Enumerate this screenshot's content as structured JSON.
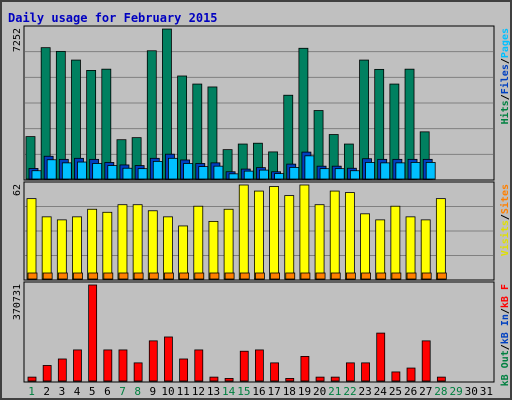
{
  "chart_data": {
    "type": "bar",
    "title": "Daily usage for February 2015",
    "categories": [
      "1",
      "2",
      "3",
      "4",
      "5",
      "6",
      "7",
      "8",
      "9",
      "10",
      "11",
      "12",
      "13",
      "14",
      "15",
      "16",
      "17",
      "18",
      "19",
      "20",
      "21",
      "22",
      "23",
      "24",
      "25",
      "26",
      "27",
      "28",
      "29",
      "30",
      "31"
    ],
    "weekend_days": [
      "1",
      "7",
      "8",
      "14",
      "15",
      "21",
      "22",
      "28",
      "29"
    ],
    "panels": [
      {
        "id": "top",
        "max_label": "7252",
        "ylim": [
          0,
          7252
        ],
        "right_label": [
          {
            "text": "Hits",
            "color": "#008040"
          },
          {
            "text": "/",
            "color": "#000000"
          },
          {
            "text": "Files",
            "color": "#0040c0"
          },
          {
            "text": "/",
            "color": "#000000"
          },
          {
            "text": "Pages",
            "color": "#00c0ff"
          }
        ],
        "series": [
          {
            "name": "Hits",
            "color": "#008060",
            "values": [
              2050,
              6350,
              6170,
              5750,
              5250,
              5310,
              1900,
              2000,
              6200,
              7250,
              4980,
              4590,
              4450,
              1420,
              1690,
              1730,
              1310,
              4050,
              6320,
              3310,
              2150,
              1690,
              5750,
              5300,
              4590,
              5310,
              2280,
              0,
              0,
              0,
              0
            ]
          },
          {
            "name": "Files",
            "color": "#0040c0",
            "values": [
              510,
              1100,
              950,
              1000,
              950,
              800,
              680,
              650,
              1000,
              1200,
              920,
              750,
              780,
              350,
              480,
              550,
              350,
              720,
              1300,
              620,
              620,
              520,
              980,
              950,
              950,
              950,
              950,
              0,
              0,
              0,
              0
            ]
          },
          {
            "name": "Pages",
            "color": "#00c0ff",
            "values": [
              400,
              930,
              780,
              820,
              750,
              650,
              520,
              500,
              850,
              1000,
              750,
              600,
              620,
              250,
              380,
              430,
              260,
              560,
              1120,
              500,
              500,
              400,
              800,
              780,
              780,
              800,
              800,
              0,
              0,
              0,
              0
            ]
          }
        ]
      },
      {
        "id": "middle",
        "max_label": "62",
        "ylim": [
          0,
          62
        ],
        "right_label": [
          {
            "text": "Visits",
            "color": "#e0e000"
          },
          {
            "text": "/",
            "color": "#000000"
          },
          {
            "text": "Sites",
            "color": "#ff8000"
          }
        ],
        "series": [
          {
            "name": "Visits",
            "color": "#ffff00",
            "values": [
              53,
              41,
              39,
              41,
              46,
              44,
              49,
              49,
              45,
              41,
              35,
              48,
              38,
              46,
              62,
              58,
              61,
              55,
              62,
              49,
              58,
              57,
              43,
              39,
              48,
              41,
              39,
              53,
              0,
              0,
              0
            ]
          },
          {
            "name": "Sites",
            "color": "#ff8000",
            "values": [
              4,
              4,
              4,
              4,
              4,
              4,
              4,
              4,
              4,
              4,
              4,
              4,
              4,
              4,
              4,
              4,
              4,
              4,
              4,
              4,
              4,
              4,
              4,
              4,
              4,
              4,
              4,
              4,
              0,
              0,
              0
            ]
          }
        ]
      },
      {
        "id": "bottom",
        "max_label": "370731",
        "ylim": [
          0,
          370731
        ],
        "right_label": [
          {
            "text": "kB Out",
            "color": "#008040"
          },
          {
            "text": "/",
            "color": "#000000"
          },
          {
            "text": "kB In",
            "color": "#0040c0"
          },
          {
            "text": "/",
            "color": "#000000"
          },
          {
            "text": "kB F",
            "color": "#ff0000"
          }
        ],
        "series": [
          {
            "name": "kB F",
            "color": "#ff0000",
            "values": [
              15000,
              60000,
              85000,
              120000,
              370731,
              120000,
              120000,
              70000,
              155000,
              170000,
              85000,
              120000,
              15000,
              10000,
              115000,
              120000,
              70000,
              10000,
              95000,
              15000,
              15000,
              70000,
              70000,
              185000,
              35000,
              50000,
              155000,
              15000,
              0,
              0,
              0
            ]
          }
        ]
      }
    ]
  }
}
